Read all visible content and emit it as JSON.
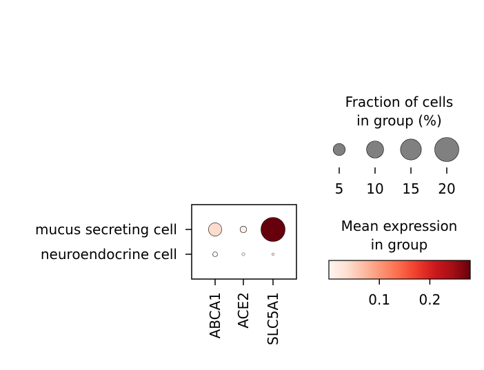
{
  "chart_data": {
    "type": "dotplot",
    "genes": [
      "ABCA1",
      "ACE2",
      "SLC5A1"
    ],
    "groups": [
      "mucus secreting cell",
      "neuroendocrine cell"
    ],
    "fraction_pct": [
      [
        6.0,
        1.5,
        20.0
      ],
      [
        0.8,
        0.3,
        0.2
      ]
    ],
    "mean_expression": [
      [
        0.04,
        0.01,
        0.28
      ],
      [
        0.0,
        0.0,
        0.0
      ]
    ],
    "size_legend": {
      "title_line1": "Fraction of cells",
      "title_line2": "in group (%)",
      "values": [
        5,
        10,
        15,
        20
      ],
      "labels": [
        "5",
        "10",
        "15",
        "20"
      ]
    },
    "color_legend": {
      "title_line1": "Mean expression",
      "title_line2": "in group",
      "colormap": "Reds",
      "range": [
        0.0,
        0.28
      ],
      "ticks": [
        0.1,
        0.2
      ],
      "tick_labels": [
        "0.1",
        "0.2"
      ]
    },
    "legend_placement": "right",
    "grid": false
  }
}
